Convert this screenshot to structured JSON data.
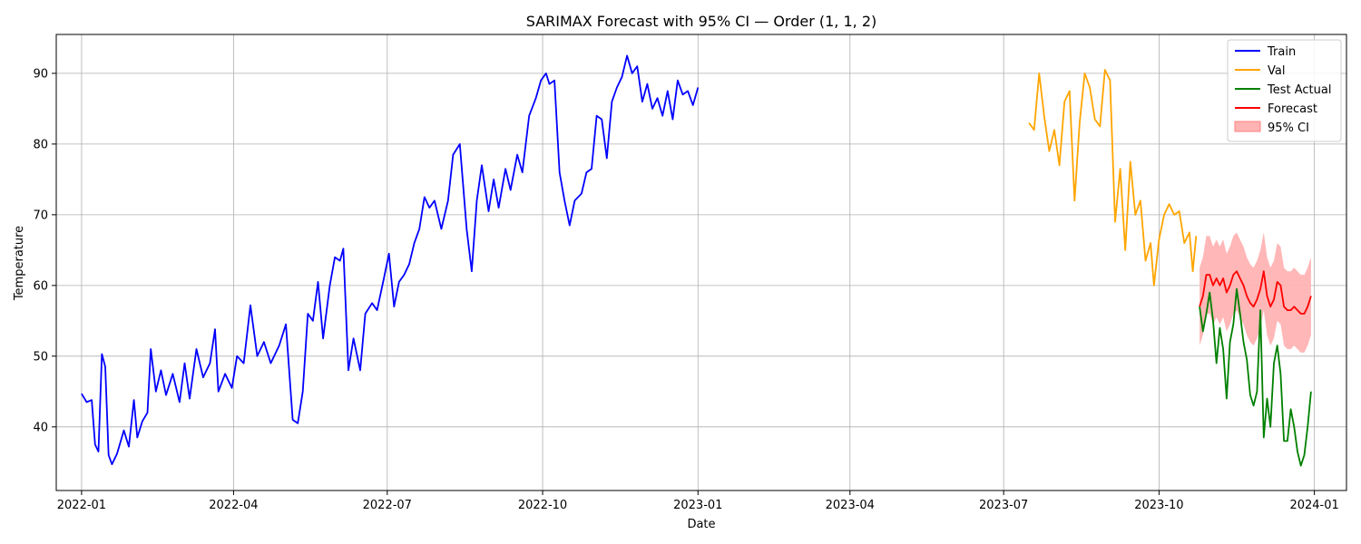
{
  "chart_data": {
    "type": "line",
    "title": "SARIMAX Forecast with 95% CI — Order (1, 1, 2)",
    "xlabel": "Date",
    "ylabel": "Temperature",
    "x_ticks": [
      "2022-01",
      "2022-04",
      "2022-07",
      "2022-10",
      "2023-01",
      "2023-04",
      "2023-07",
      "2023-10",
      "2024-01"
    ],
    "y_ticks": [
      40,
      50,
      60,
      70,
      80,
      90
    ],
    "xlim": [
      "2021-12-17",
      "2024-01-20"
    ],
    "ylim": [
      31,
      95.5
    ],
    "grid": true,
    "legend_position": "top-right",
    "colors": {
      "train": "#0000ff",
      "val": "#ffa500",
      "test": "#008000",
      "forecast": "#ff0000",
      "ci_fill": "#ffb3b3"
    },
    "series": [
      {
        "name": "Train",
        "color": "#0000ff",
        "points": [
          [
            "2022-01-01",
            44.7
          ],
          [
            "2022-01-04",
            43.5
          ],
          [
            "2022-01-07",
            43.8
          ],
          [
            "2022-01-09",
            37.5
          ],
          [
            "2022-01-11",
            36.5
          ],
          [
            "2022-01-13",
            50.3
          ],
          [
            "2022-01-15",
            48.5
          ],
          [
            "2022-01-17",
            36.0
          ],
          [
            "2022-01-19",
            34.7
          ],
          [
            "2022-01-22",
            36.2
          ],
          [
            "2022-01-26",
            39.5
          ],
          [
            "2022-01-29",
            37.2
          ],
          [
            "2022-02-01",
            43.8
          ],
          [
            "2022-02-03",
            38.5
          ],
          [
            "2022-02-06",
            40.8
          ],
          [
            "2022-02-09",
            42.0
          ],
          [
            "2022-02-11",
            51.0
          ],
          [
            "2022-02-14",
            45.0
          ],
          [
            "2022-02-17",
            48.0
          ],
          [
            "2022-02-20",
            44.5
          ],
          [
            "2022-02-24",
            47.5
          ],
          [
            "2022-02-28",
            43.5
          ],
          [
            "2022-03-03",
            49.0
          ],
          [
            "2022-03-06",
            44.0
          ],
          [
            "2022-03-10",
            51.0
          ],
          [
            "2022-03-14",
            47.0
          ],
          [
            "2022-03-18",
            49.0
          ],
          [
            "2022-03-21",
            53.8
          ],
          [
            "2022-03-23",
            45.0
          ],
          [
            "2022-03-27",
            47.5
          ],
          [
            "2022-03-31",
            45.5
          ],
          [
            "2022-04-03",
            50.0
          ],
          [
            "2022-04-07",
            49.0
          ],
          [
            "2022-04-11",
            57.2
          ],
          [
            "2022-04-15",
            50.0
          ],
          [
            "2022-04-19",
            52.0
          ],
          [
            "2022-04-23",
            49.0
          ],
          [
            "2022-04-28",
            51.5
          ],
          [
            "2022-05-02",
            54.5
          ],
          [
            "2022-05-06",
            41.0
          ],
          [
            "2022-05-09",
            40.5
          ],
          [
            "2022-05-12",
            45.0
          ],
          [
            "2022-05-15",
            56.0
          ],
          [
            "2022-05-18",
            55.0
          ],
          [
            "2022-05-21",
            60.5
          ],
          [
            "2022-05-24",
            52.5
          ],
          [
            "2022-05-28",
            60.0
          ],
          [
            "2022-05-31",
            64.0
          ],
          [
            "2022-06-03",
            63.5
          ],
          [
            "2022-06-05",
            65.2
          ],
          [
            "2022-06-08",
            48.0
          ],
          [
            "2022-06-11",
            52.5
          ],
          [
            "2022-06-15",
            48.0
          ],
          [
            "2022-06-18",
            56.0
          ],
          [
            "2022-06-22",
            57.5
          ],
          [
            "2022-06-25",
            56.5
          ],
          [
            "2022-06-29",
            61.0
          ],
          [
            "2022-07-02",
            64.5
          ],
          [
            "2022-07-05",
            57.0
          ],
          [
            "2022-07-08",
            60.5
          ],
          [
            "2022-07-11",
            61.5
          ],
          [
            "2022-07-14",
            63.0
          ],
          [
            "2022-07-17",
            66.0
          ],
          [
            "2022-07-20",
            68.0
          ],
          [
            "2022-07-23",
            72.5
          ],
          [
            "2022-07-26",
            71.0
          ],
          [
            "2022-07-29",
            72.0
          ],
          [
            "2022-08-02",
            68.0
          ],
          [
            "2022-08-06",
            72.0
          ],
          [
            "2022-08-09",
            78.5
          ],
          [
            "2022-08-13",
            80.0
          ],
          [
            "2022-08-17",
            68.0
          ],
          [
            "2022-08-20",
            62.0
          ],
          [
            "2022-08-23",
            72.0
          ],
          [
            "2022-08-26",
            77.0
          ],
          [
            "2022-08-30",
            70.5
          ],
          [
            "2022-09-02",
            75.0
          ],
          [
            "2022-09-05",
            71.0
          ],
          [
            "2022-09-09",
            76.5
          ],
          [
            "2022-09-12",
            73.5
          ],
          [
            "2022-09-16",
            78.5
          ],
          [
            "2022-09-19",
            76.0
          ],
          [
            "2022-09-23",
            84.0
          ],
          [
            "2022-09-27",
            86.5
          ],
          [
            "2022-09-30",
            89.0
          ],
          [
            "2022-10-03",
            90.0
          ],
          [
            "2022-10-05",
            88.5
          ],
          [
            "2022-10-08",
            89.0
          ],
          [
            "2022-10-11",
            76.0
          ],
          [
            "2022-10-14",
            72.0
          ],
          [
            "2022-10-17",
            68.5
          ],
          [
            "2022-10-20",
            72.0
          ],
          [
            "2022-10-24",
            73.0
          ],
          [
            "2022-10-27",
            76.0
          ],
          [
            "2022-10-30",
            76.5
          ],
          [
            "2022-11-02",
            84.0
          ],
          [
            "2022-11-05",
            83.5
          ],
          [
            "2022-11-08",
            78.0
          ],
          [
            "2022-11-11",
            86.0
          ],
          [
            "2022-11-14",
            88.0
          ],
          [
            "2022-11-17",
            89.5
          ],
          [
            "2022-11-20",
            92.5
          ],
          [
            "2022-11-23",
            90.0
          ],
          [
            "2022-11-26",
            91.0
          ],
          [
            "2022-11-29",
            86.0
          ],
          [
            "2022-12-02",
            88.5
          ],
          [
            "2022-12-05",
            85.0
          ],
          [
            "2022-12-08",
            86.5
          ],
          [
            "2022-12-11",
            84.0
          ],
          [
            "2022-12-14",
            87.5
          ],
          [
            "2022-12-17",
            83.5
          ],
          [
            "2022-12-20",
            89.0
          ],
          [
            "2022-12-23",
            87.0
          ],
          [
            "2022-12-26",
            87.5
          ],
          [
            "2022-12-29",
            85.5
          ],
          [
            "2023-01-01",
            88.0
          ]
        ]
      },
      {
        "name": "Val",
        "color": "#ffa500",
        "points": [
          [
            "2023-07-16",
            83.0
          ],
          [
            "2023-07-19",
            82.0
          ],
          [
            "2023-07-22",
            90.0
          ],
          [
            "2023-07-25",
            84.0
          ],
          [
            "2023-07-28",
            79.0
          ],
          [
            "2023-07-31",
            82.0
          ],
          [
            "2023-08-03",
            77.0
          ],
          [
            "2023-08-06",
            86.0
          ],
          [
            "2023-08-09",
            87.5
          ],
          [
            "2023-08-12",
            72.0
          ],
          [
            "2023-08-15",
            83.0
          ],
          [
            "2023-08-18",
            90.0
          ],
          [
            "2023-08-21",
            88.0
          ],
          [
            "2023-08-24",
            83.5
          ],
          [
            "2023-08-27",
            82.5
          ],
          [
            "2023-08-30",
            90.5
          ],
          [
            "2023-09-02",
            89.0
          ],
          [
            "2023-09-05",
            69.0
          ],
          [
            "2023-09-08",
            76.5
          ],
          [
            "2023-09-11",
            65.0
          ],
          [
            "2023-09-14",
            77.5
          ],
          [
            "2023-09-17",
            70.0
          ],
          [
            "2023-09-20",
            72.0
          ],
          [
            "2023-09-23",
            63.5
          ],
          [
            "2023-09-26",
            66.0
          ],
          [
            "2023-09-28",
            60.0
          ],
          [
            "2023-10-01",
            66.5
          ],
          [
            "2023-10-04",
            70.0
          ],
          [
            "2023-10-07",
            71.5
          ],
          [
            "2023-10-10",
            70.0
          ],
          [
            "2023-10-13",
            70.5
          ],
          [
            "2023-10-16",
            66.0
          ],
          [
            "2023-10-19",
            67.5
          ],
          [
            "2023-10-21",
            62.0
          ],
          [
            "2023-10-23",
            67.0
          ]
        ]
      },
      {
        "name": "Test Actual",
        "color": "#008000",
        "points": [
          [
            "2023-10-25",
            57.0
          ],
          [
            "2023-10-27",
            53.5
          ],
          [
            "2023-10-29",
            56.0
          ],
          [
            "2023-10-31",
            59.0
          ],
          [
            "2023-11-02",
            55.0
          ],
          [
            "2023-11-04",
            49.0
          ],
          [
            "2023-11-06",
            54.0
          ],
          [
            "2023-11-08",
            51.0
          ],
          [
            "2023-11-10",
            44.0
          ],
          [
            "2023-11-12",
            52.0
          ],
          [
            "2023-11-14",
            54.5
          ],
          [
            "2023-11-16",
            59.5
          ],
          [
            "2023-11-18",
            56.0
          ],
          [
            "2023-11-20",
            52.0
          ],
          [
            "2023-11-22",
            49.5
          ],
          [
            "2023-11-24",
            44.5
          ],
          [
            "2023-11-26",
            43.0
          ],
          [
            "2023-11-28",
            45.0
          ],
          [
            "2023-11-30",
            56.5
          ],
          [
            "2023-12-02",
            38.5
          ],
          [
            "2023-12-04",
            44.0
          ],
          [
            "2023-12-06",
            40.0
          ],
          [
            "2023-12-08",
            49.0
          ],
          [
            "2023-12-10",
            51.5
          ],
          [
            "2023-12-12",
            47.5
          ],
          [
            "2023-12-14",
            38.0
          ],
          [
            "2023-12-16",
            38.0
          ],
          [
            "2023-12-18",
            42.5
          ],
          [
            "2023-12-20",
            40.0
          ],
          [
            "2023-12-22",
            36.5
          ],
          [
            "2023-12-24",
            34.5
          ],
          [
            "2023-12-26",
            36.0
          ],
          [
            "2023-12-28",
            40.0
          ],
          [
            "2023-12-30",
            45.0
          ]
        ]
      },
      {
        "name": "Forecast",
        "color": "#ff0000",
        "points": [
          [
            "2023-10-25",
            57.0
          ],
          [
            "2023-10-27",
            58.5
          ],
          [
            "2023-10-29",
            61.5
          ],
          [
            "2023-10-31",
            61.5
          ],
          [
            "2023-11-02",
            60.0
          ],
          [
            "2023-11-04",
            61.0
          ],
          [
            "2023-11-06",
            60.0
          ],
          [
            "2023-11-08",
            61.0
          ],
          [
            "2023-11-10",
            59.0
          ],
          [
            "2023-11-12",
            60.0
          ],
          [
            "2023-11-14",
            61.5
          ],
          [
            "2023-11-16",
            62.0
          ],
          [
            "2023-11-18",
            61.0
          ],
          [
            "2023-11-20",
            60.0
          ],
          [
            "2023-11-22",
            58.5
          ],
          [
            "2023-11-24",
            57.5
          ],
          [
            "2023-11-26",
            57.0
          ],
          [
            "2023-11-28",
            58.0
          ],
          [
            "2023-11-30",
            59.5
          ],
          [
            "2023-12-02",
            62.0
          ],
          [
            "2023-12-04",
            58.5
          ],
          [
            "2023-12-06",
            57.0
          ],
          [
            "2023-12-08",
            58.0
          ],
          [
            "2023-12-10",
            60.5
          ],
          [
            "2023-12-12",
            60.0
          ],
          [
            "2023-12-14",
            57.0
          ],
          [
            "2023-12-16",
            56.5
          ],
          [
            "2023-12-18",
            56.5
          ],
          [
            "2023-12-20",
            57.0
          ],
          [
            "2023-12-22",
            56.5
          ],
          [
            "2023-12-24",
            56.0
          ],
          [
            "2023-12-26",
            56.0
          ],
          [
            "2023-12-28",
            57.0
          ],
          [
            "2023-12-30",
            58.5
          ]
        ]
      }
    ],
    "confidence_band": {
      "name": "95% CI",
      "color": "#ffb3b3",
      "ci_halfwidth": 5.5
    },
    "legend": [
      "Train",
      "Val",
      "Test Actual",
      "Forecast",
      "95% CI"
    ]
  }
}
